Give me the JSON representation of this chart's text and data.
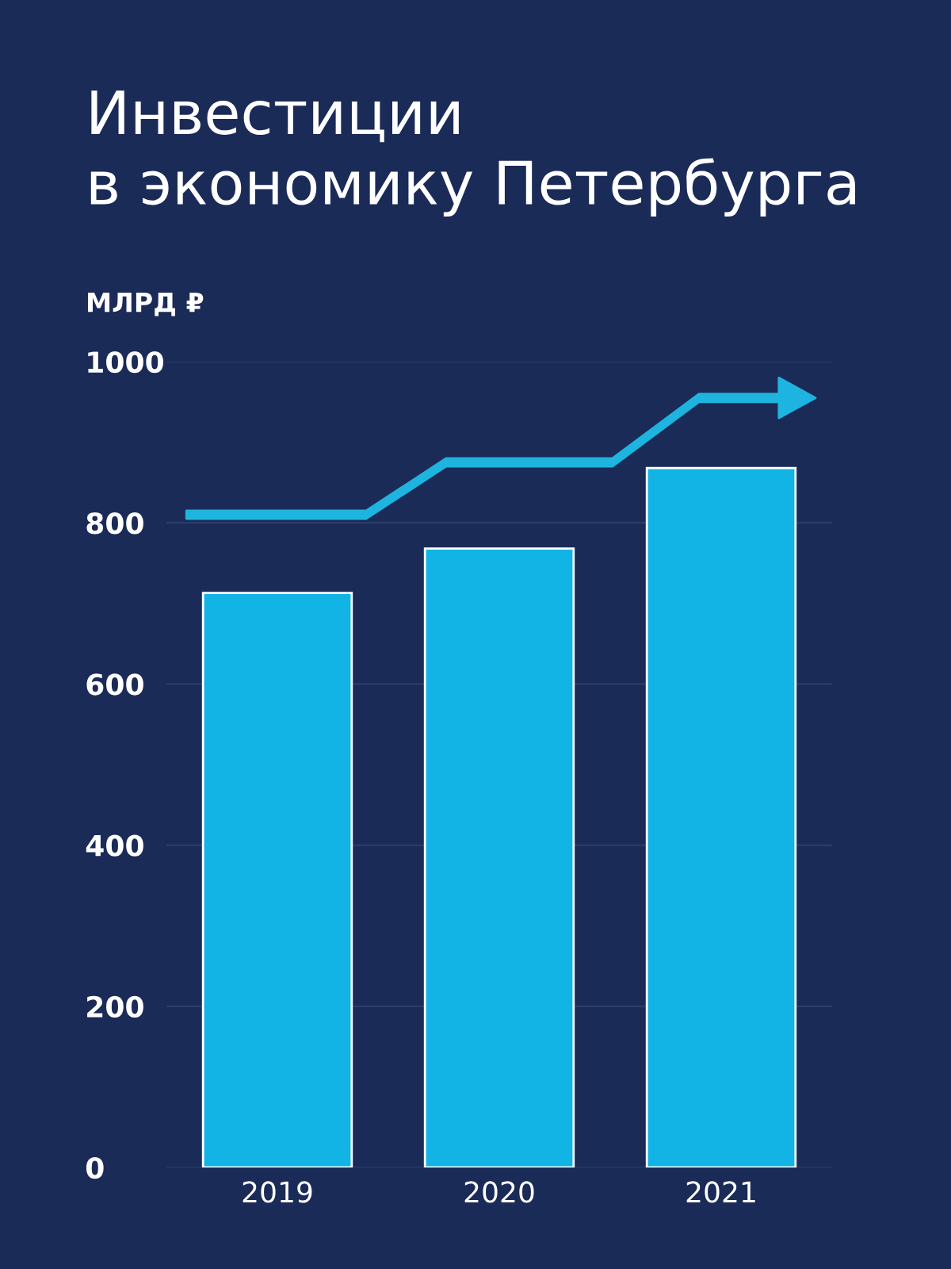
{
  "chart_data": {
    "type": "bar",
    "title": "Инвестиции\nв экономику Петербурга",
    "ylabel": "МЛРД ₽",
    "categories": [
      "2019",
      "2020",
      "2021"
    ],
    "values": [
      713,
      768,
      868
    ],
    "color": "#12b4e6",
    "ylim": [
      0,
      1000
    ],
    "yticks": [
      0,
      200,
      400,
      600,
      800,
      1000
    ],
    "grid": "y"
  }
}
